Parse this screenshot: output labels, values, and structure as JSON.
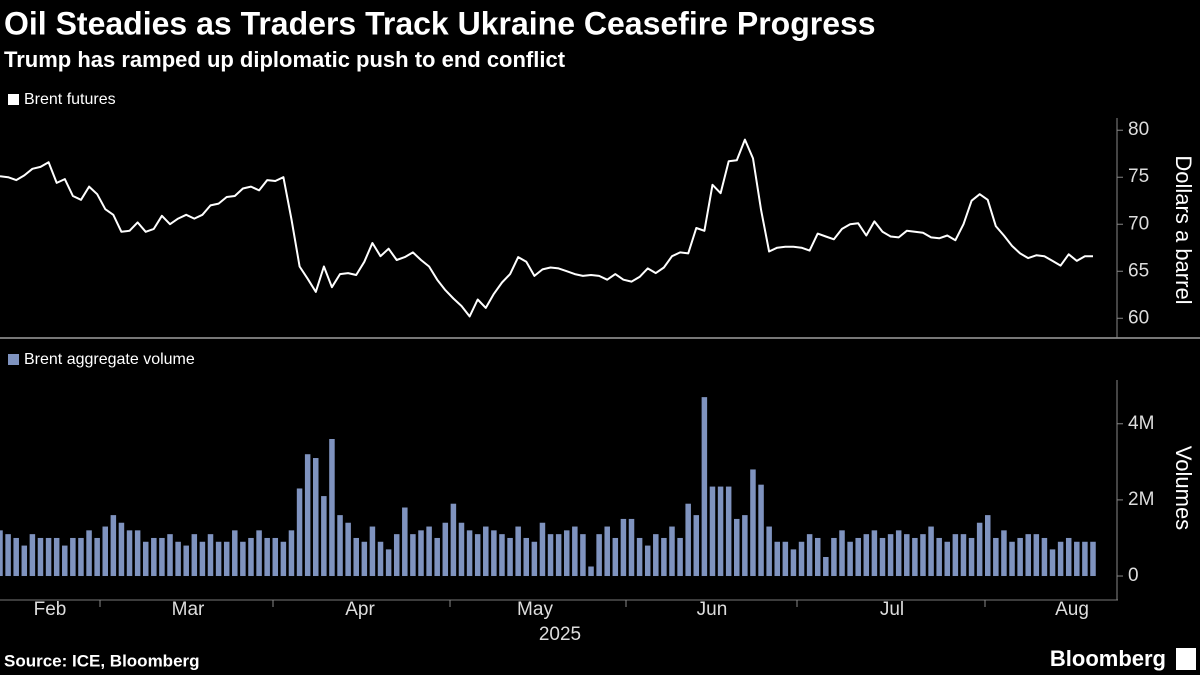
{
  "title": "Oil Steadies as Traders Track Ukraine Ceasefire Progress",
  "subtitle": "Trump has ramped up diplomatic push to end conflict",
  "source": "Source: ICE, Bloomberg",
  "brand": "Bloomberg",
  "chart_data": [
    {
      "type": "line",
      "ylabel": "Dollars a barrel",
      "ylim": [
        57.9,
        81.3
      ],
      "yticks": [
        60,
        65,
        70,
        75,
        80
      ],
      "series": [
        {
          "name": "Brent futures",
          "color": "#ffffff",
          "values": [
            75.1,
            75,
            74.7,
            75.2,
            75.9,
            76.1,
            76.6,
            74.4,
            74.8,
            73,
            72.6,
            74,
            73.2,
            71.6,
            71,
            69.2,
            69.3,
            70.2,
            69.2,
            69.5,
            70.9,
            70,
            70.6,
            71,
            70.6,
            71,
            72,
            72.2,
            72.9,
            73,
            73.8,
            74,
            73.6,
            74.7,
            74.6,
            75,
            70.5,
            65.5,
            64.2,
            62.8,
            65.5,
            63.3,
            64.7,
            64.8,
            64.6,
            66,
            68,
            66.6,
            67.4,
            66.2,
            66.5,
            67,
            66.2,
            65.5,
            64.1,
            63,
            62.1,
            61.3,
            60.2,
            62,
            61.1,
            62.6,
            63.8,
            64.7,
            66.5,
            66,
            64.5,
            65.2,
            65.4,
            65.3,
            65,
            64.7,
            64.5,
            64.6,
            64.5,
            64.1,
            64.7,
            64.1,
            63.9,
            64.4,
            65.3,
            64.8,
            65.4,
            66.6,
            67,
            66.9,
            69.6,
            69.3,
            74.2,
            73.3,
            76.7,
            76.8,
            79,
            77,
            71.5,
            67.1,
            67.5,
            67.6,
            67.6,
            67.5,
            67.2,
            69,
            68.7,
            68.4,
            69.5,
            70,
            70.1,
            68.8,
            70.3,
            69.2,
            68.7,
            68.6,
            69.3,
            69.2,
            69.1,
            68.6,
            68.5,
            68.8,
            68.3,
            70,
            72.5,
            73.2,
            72.6,
            69.8,
            68.8,
            67.7,
            66.9,
            66.4,
            66.7,
            66.6,
            66.1,
            65.6,
            66.8,
            66.1,
            66.6,
            66.6
          ]
        }
      ]
    },
    {
      "type": "bar",
      "ylabel": "Volumes",
      "xlabel": "2025",
      "x_labels": [
        "Feb",
        "Mar",
        "Apr",
        "May",
        "Jun",
        "Jul",
        "Aug"
      ],
      "ylim": [
        -630000,
        5150000
      ],
      "yticks": [
        0,
        {
          "value": 2000000,
          "label": "2M"
        },
        {
          "value": 4000000,
          "label": "4M"
        }
      ],
      "series": [
        {
          "name": "Brent aggregate volume",
          "color": "#7f93bf",
          "values": [
            1200000,
            1100000,
            1000000,
            800000,
            1100000,
            1000000,
            1000000,
            1000000,
            800000,
            1000000,
            1000000,
            1200000,
            1000000,
            1300000,
            1600000,
            1400000,
            1200000,
            1200000,
            900000,
            1000000,
            1000000,
            1100000,
            900000,
            800000,
            1100000,
            900000,
            1100000,
            900000,
            900000,
            1200000,
            900000,
            1000000,
            1200000,
            1000000,
            1000000,
            900000,
            1200000,
            2300000,
            3200000,
            3100000,
            2100000,
            3600000,
            1600000,
            1400000,
            1000000,
            900000,
            1300000,
            900000,
            700000,
            1100000,
            1800000,
            1100000,
            1200000,
            1300000,
            1000000,
            1400000,
            1900000,
            1400000,
            1200000,
            1100000,
            1300000,
            1200000,
            1100000,
            1000000,
            1300000,
            1000000,
            900000,
            1400000,
            1100000,
            1100000,
            1200000,
            1300000,
            1100000,
            250000,
            1100000,
            1300000,
            1000000,
            1500000,
            1500000,
            1000000,
            800000,
            1100000,
            1000000,
            1300000,
            1000000,
            1900000,
            1600000,
            4700000,
            2350000,
            2350000,
            2350000,
            1500000,
            1600000,
            2800000,
            2400000,
            1300000,
            900000,
            900000,
            700000,
            900000,
            1100000,
            1000000,
            500000,
            1000000,
            1200000,
            900000,
            1000000,
            1100000,
            1200000,
            1000000,
            1100000,
            1200000,
            1100000,
            1000000,
            1100000,
            1300000,
            1000000,
            900000,
            1100000,
            1100000,
            1000000,
            1400000,
            1600000,
            1000000,
            1200000,
            900000,
            1000000,
            1100000,
            1100000,
            1000000,
            700000,
            900000,
            1000000,
            900000,
            900000,
            900000
          ]
        }
      ]
    }
  ]
}
